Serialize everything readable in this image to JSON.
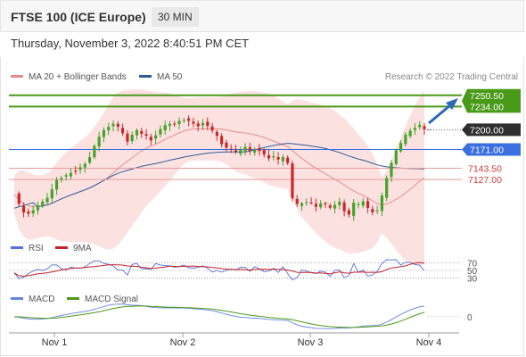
{
  "header": {
    "title": "FTSE 100 (ICE Europe)",
    "timeframe": "30 MIN"
  },
  "timestamp": "Thursday, November 3, 2022 8:40:51 PM CET",
  "copyright": "Research © 2022 Trading Central",
  "colors": {
    "bull": "#46a32c",
    "bear": "#c8282a",
    "resistance": "#4a9a1a",
    "pivot": "#2f2f2f",
    "support": "#cf3a3a",
    "ma50": "#2e5c9b",
    "bollinger_fill": "#fbd4d4",
    "ma20": "#e07a7a",
    "blue_level": "#3b6fe0",
    "arrow": "#2b68b8",
    "rsi": "#5573d8",
    "rsi_ma": "#c8202a",
    "macd": "#6384e0",
    "macd_signal": "#4e9a16"
  },
  "chart_data": [
    {
      "type": "candlestick",
      "name": "price",
      "legend": [
        {
          "label": "MA 20 + Bollinger Bands",
          "color": "#e58b8b"
        },
        {
          "label": "MA 50",
          "color": "#2e5c9b"
        }
      ],
      "levels": [
        {
          "value": 7250.5,
          "label": "7250.50",
          "kind": "resistance"
        },
        {
          "value": 7234.0,
          "label": "7234.00",
          "kind": "resistance"
        },
        {
          "value": 7200.0,
          "label": "7200.00",
          "kind": "pivot"
        },
        {
          "value": 7171.0,
          "label": "7171.00",
          "kind": "current"
        },
        {
          "value": 7143.5,
          "label": "7143.50",
          "kind": "support"
        },
        {
          "value": 7127.0,
          "label": "7127.00",
          "kind": "support"
        }
      ],
      "x_labels": [
        "Nov 1",
        "Nov 2",
        "Nov 3",
        "Nov 4"
      ],
      "ylim": [
        7050,
        7262
      ],
      "close_path": [
        7105,
        7090,
        7080,
        7078,
        7082,
        7088,
        7095,
        7100,
        7112,
        7125,
        7130,
        7133,
        7138,
        7140,
        7145,
        7150,
        7160,
        7175,
        7190,
        7198,
        7205,
        7208,
        7203,
        7196,
        7184,
        7192,
        7200,
        7195,
        7190,
        7185,
        7192,
        7200,
        7206,
        7210,
        7208,
        7212,
        7215,
        7212,
        7208,
        7206,
        7210,
        7205,
        7198,
        7190,
        7180,
        7173,
        7170,
        7166,
        7170,
        7175,
        7168,
        7172,
        7170,
        7163,
        7158,
        7160,
        7155,
        7160,
        7152,
        7100,
        7090,
        7092,
        7095,
        7093,
        7088,
        7092,
        7090,
        7085,
        7090,
        7094,
        7082,
        7075,
        7092,
        7090,
        7095,
        7085,
        7080,
        7082,
        7102,
        7130,
        7150,
        7170,
        7180,
        7192,
        7200,
        7204,
        7206,
        7200
      ]
    },
    {
      "type": "line",
      "name": "RSI",
      "legend": [
        {
          "label": "RSI",
          "color": "#5573d8"
        },
        {
          "label": "9MA",
          "color": "#c8202a"
        }
      ],
      "levels": [
        70,
        50,
        30
      ],
      "ylim": [
        15,
        85
      ]
    },
    {
      "type": "line",
      "name": "MACD",
      "legend": [
        {
          "label": "MACD",
          "color": "#6384e0"
        },
        {
          "label": "MACD Signal",
          "color": "#4e9a16"
        }
      ],
      "levels": [
        0
      ],
      "ylim": [
        -28,
        22
      ]
    }
  ]
}
